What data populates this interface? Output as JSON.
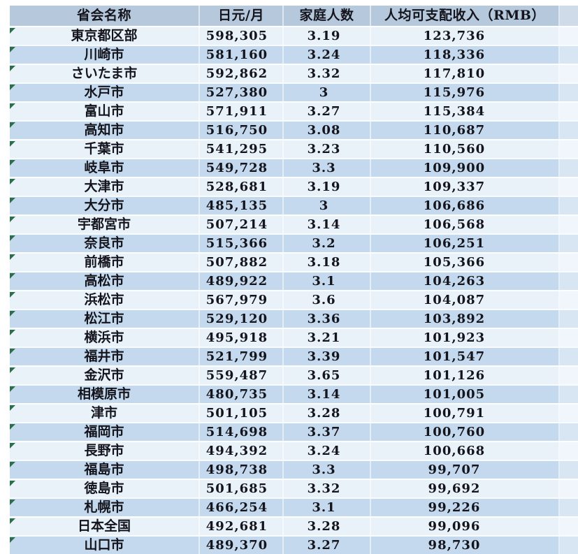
{
  "table": {
    "headers": [
      "省会名称",
      "日元/月",
      "家庭人数",
      "人均可支配收入（RMB）"
    ],
    "rows": [
      {
        "city": "東京都区部",
        "yen": "598,305",
        "size": "3.19",
        "income": "123,736"
      },
      {
        "city": "川崎市",
        "yen": "581,160",
        "size": "3.24",
        "income": "118,336"
      },
      {
        "city": "さいたま市",
        "yen": "592,862",
        "size": "3.32",
        "income": "117,810"
      },
      {
        "city": "水戸市",
        "yen": "527,380",
        "size": "3",
        "income": "115,976"
      },
      {
        "city": "富山市",
        "yen": "571,911",
        "size": "3.27",
        "income": "115,384"
      },
      {
        "city": "高知市",
        "yen": "516,750",
        "size": "3.08",
        "income": "110,687"
      },
      {
        "city": "千葉市",
        "yen": "541,295",
        "size": "3.23",
        "income": "110,560"
      },
      {
        "city": "岐阜市",
        "yen": "549,728",
        "size": "3.3",
        "income": "109,900"
      },
      {
        "city": "大津市",
        "yen": "528,681",
        "size": "3.19",
        "income": "109,337"
      },
      {
        "city": "大分市",
        "yen": "485,135",
        "size": "3",
        "income": "106,686"
      },
      {
        "city": "宇都宮市",
        "yen": "507,214",
        "size": "3.14",
        "income": "106,568"
      },
      {
        "city": "奈良市",
        "yen": "515,366",
        "size": "3.2",
        "income": "106,251"
      },
      {
        "city": "前橋市",
        "yen": "507,882",
        "size": "3.18",
        "income": "105,366"
      },
      {
        "city": "高松市",
        "yen": "489,922",
        "size": "3.1",
        "income": "104,263"
      },
      {
        "city": "浜松市",
        "yen": "567,979",
        "size": "3.6",
        "income": "104,087"
      },
      {
        "city": "松江市",
        "yen": "529,120",
        "size": "3.36",
        "income": "103,892"
      },
      {
        "city": "横浜市",
        "yen": "495,918",
        "size": "3.21",
        "income": "101,923"
      },
      {
        "city": "福井市",
        "yen": "521,799",
        "size": "3.39",
        "income": "101,547"
      },
      {
        "city": "金沢市",
        "yen": "559,487",
        "size": "3.65",
        "income": "101,126"
      },
      {
        "city": "相模原市",
        "yen": "480,735",
        "size": "3.14",
        "income": "101,005"
      },
      {
        "city": "津市",
        "yen": "501,105",
        "size": "3.28",
        "income": "100,791"
      },
      {
        "city": "福岡市",
        "yen": "514,698",
        "size": "3.37",
        "income": "100,760"
      },
      {
        "city": "長野市",
        "yen": "494,392",
        "size": "3.24",
        "income": "100,668"
      },
      {
        "city": "福島市",
        "yen": "498,738",
        "size": "3.3",
        "income": "99,707"
      },
      {
        "city": "徳島市",
        "yen": "501,685",
        "size": "3.32",
        "income": "99,692"
      },
      {
        "city": "札幌市",
        "yen": "466,254",
        "size": "3.1",
        "income": "99,226"
      },
      {
        "city": "日本全国",
        "yen": "492,681",
        "size": "3.28",
        "income": "99,096"
      }
    ],
    "partial_bottom_row": {
      "city": "山口市",
      "yen": "489,370",
      "size": "3.27",
      "income": "98,730"
    }
  },
  "icons": {
    "error_indicator": "green-corner-triangle"
  },
  "colors": {
    "header_bg": "#b6c8dc",
    "row_light": "#e9f1f9",
    "row_blue": "#c4d9ed",
    "indicator_green": "#2a6e4a",
    "text": "#14141c",
    "page_bg": "#ffffff"
  }
}
